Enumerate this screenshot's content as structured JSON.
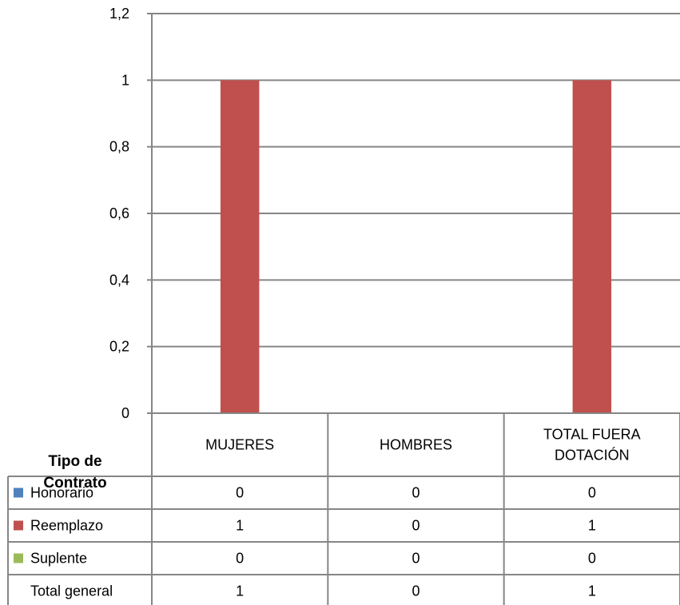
{
  "chart_data": {
    "type": "bar",
    "categories": [
      "MUJERES",
      "HOMBRES",
      "TOTAL FUERA DOTACIÓN"
    ],
    "category_lines": [
      [
        "MUJERES"
      ],
      [
        "HOMBRES"
      ],
      [
        "TOTAL FUERA",
        "DOTACIÓN"
      ]
    ],
    "series": [
      {
        "name": "Honorario",
        "values": [
          0,
          0,
          0
        ],
        "color": "#4f81bd"
      },
      {
        "name": "Reemplazo",
        "values": [
          1,
          0,
          1
        ],
        "color": "#c0504d"
      },
      {
        "name": "Suplente",
        "values": [
          0,
          0,
          0
        ],
        "color": "#9bbb59"
      }
    ],
    "total_row": {
      "label": "Total general",
      "values": [
        1,
        0,
        1
      ]
    },
    "row_header": [
      "Tipo de",
      "Contrato"
    ],
    "ylim": [
      0,
      1.2
    ],
    "yticks": [
      0,
      0.2,
      0.4,
      0.6,
      0.8,
      1,
      1.2
    ],
    "ytick_labels": [
      "0",
      "0,2",
      "0,4",
      "0,6",
      "0,8",
      "1",
      "1,2"
    ],
    "grid": true,
    "legend": "data-table",
    "title": "",
    "xlabel": "",
    "ylabel": ""
  }
}
